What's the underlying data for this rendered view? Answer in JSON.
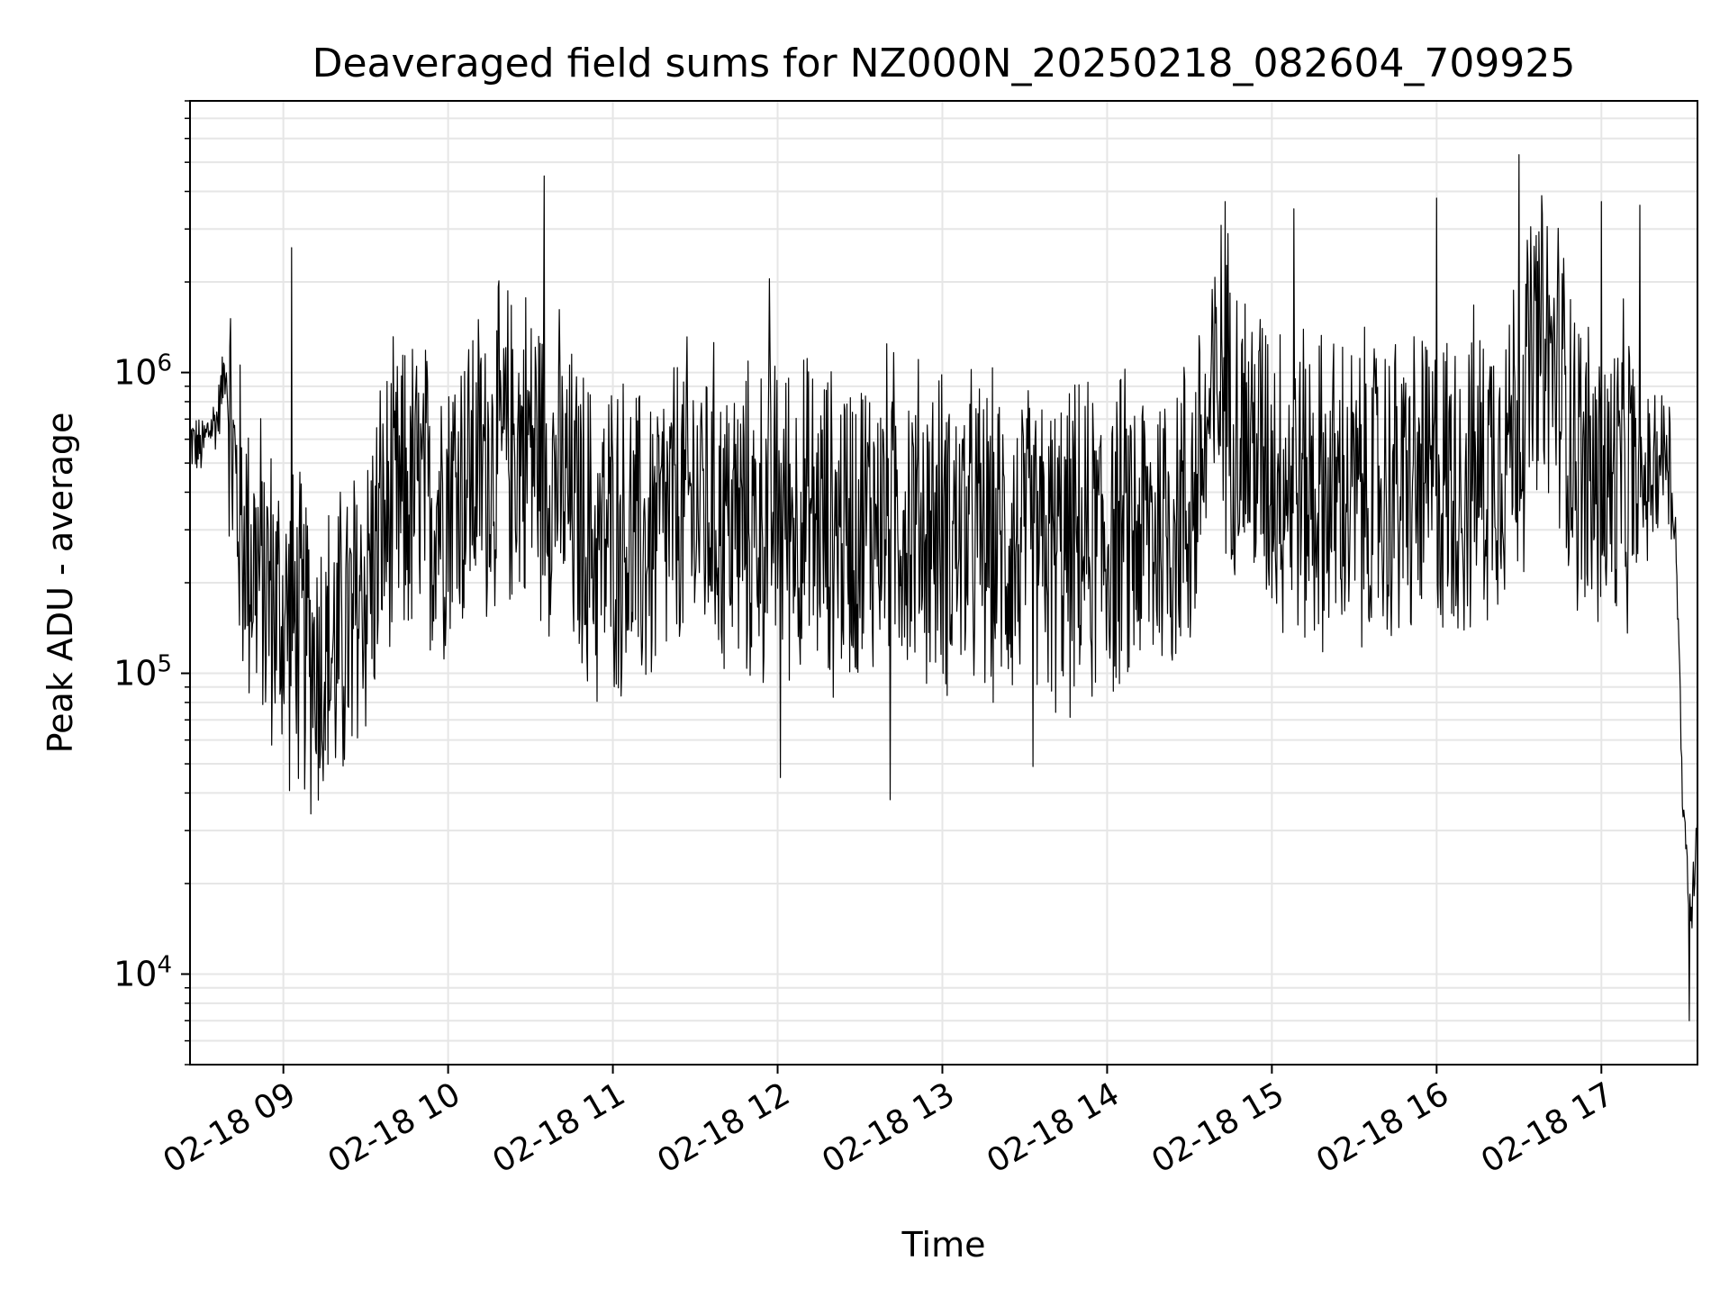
{
  "chart_data": {
    "type": "line",
    "title": "Deaveraged field sums for NZ000N_20250218_082604_709925",
    "xlabel": "Time",
    "ylabel": "Peak ADU - average",
    "yscale": "log",
    "ylim": [
      5000,
      8000000
    ],
    "xlim": [
      "02-18 08:26",
      "02-18 17:35"
    ],
    "grid": true,
    "legend": "none",
    "line_color": "#000000",
    "y_ticks": [
      {
        "value": 10000,
        "base": "10",
        "exp": "4"
      },
      {
        "value": 100000,
        "base": "10",
        "exp": "5"
      },
      {
        "value": 1000000,
        "base": "10",
        "exp": "6"
      }
    ],
    "x_ticks": [
      {
        "time": "02-18 09:00",
        "label": "02-18 09"
      },
      {
        "time": "02-18 10:00",
        "label": "02-18 10"
      },
      {
        "time": "02-18 11:00",
        "label": "02-18 11"
      },
      {
        "time": "02-18 12:00",
        "label": "02-18 12"
      },
      {
        "time": "02-18 13:00",
        "label": "02-18 13"
      },
      {
        "time": "02-18 14:00",
        "label": "02-18 14"
      },
      {
        "time": "02-18 15:00",
        "label": "02-18 15"
      },
      {
        "time": "02-18 16:00",
        "label": "02-18 16"
      },
      {
        "time": "02-18 17:00",
        "label": "02-18 17"
      }
    ],
    "series": [
      {
        "x": [
          "02-18 08:26",
          "02-18 08:30",
          "02-18 08:33",
          "02-18 08:36",
          "02-18 08:39",
          "02-18 08:42",
          "02-18 08:45",
          "02-18 08:48",
          "02-18 08:50",
          "02-18 08:53",
          "02-18 08:56",
          "02-18 08:59",
          "02-18 09:02",
          "02-18 09:05",
          "02-18 09:10",
          "02-18 09:15",
          "02-18 09:20",
          "02-18 09:25",
          "02-18 09:30",
          "02-18 09:36",
          "02-18 09:42",
          "02-18 09:48",
          "02-18 09:54",
          "02-18 10:00",
          "02-18 10:10",
          "02-18 10:20",
          "02-18 10:30",
          "02-18 10:35",
          "02-18 10:40",
          "02-18 10:45",
          "02-18 10:50",
          "02-18 10:55",
          "02-18 11:00",
          "02-18 11:05",
          "02-18 11:10",
          "02-18 11:20",
          "02-18 11:30",
          "02-18 11:40",
          "02-18 11:50",
          "02-18 12:00",
          "02-18 12:10",
          "02-18 12:20",
          "02-18 12:30",
          "02-18 12:40",
          "02-18 12:50",
          "02-18 13:00",
          "02-18 13:15",
          "02-18 13:30",
          "02-18 13:45",
          "02-18 14:00",
          "02-18 14:15",
          "02-18 14:30",
          "02-18 14:42",
          "02-18 14:50",
          "02-18 15:00",
          "02-18 15:15",
          "02-18 15:30",
          "02-18 15:45",
          "02-18 16:00",
          "02-18 16:15",
          "02-18 16:30",
          "02-18 16:36",
          "02-18 16:45",
          "02-18 16:52",
          "02-18 17:00",
          "02-18 17:10",
          "02-18 17:15",
          "02-18 17:20",
          "02-18 17:24",
          "02-18 17:27",
          "02-18 17:30",
          "02-18 17:33",
          "02-18 17:35"
        ],
        "y": [
          600000,
          550000,
          650000,
          700000,
          1100000,
          450000,
          300000,
          250000,
          230000,
          200000,
          180000,
          150000,
          150000,
          140000,
          120000,
          110000,
          120000,
          150000,
          200000,
          300000,
          350000,
          400000,
          350000,
          420000,
          480000,
          550000,
          600000,
          500000,
          450000,
          350000,
          300000,
          250000,
          300000,
          280000,
          250000,
          320000,
          380000,
          330000,
          300000,
          350000,
          330000,
          300000,
          320000,
          350000,
          320000,
          300000,
          280000,
          260000,
          250000,
          280000,
          300000,
          350000,
          1000000,
          600000,
          500000,
          400000,
          380000,
          400000,
          420000,
          450000,
          700000,
          1200000,
          1000000,
          500000,
          400000,
          450000,
          400000,
          500000,
          600000,
          300000,
          30000,
          15000,
          40000
        ]
      }
    ],
    "peaks": [
      {
        "x": "02-18 09:03",
        "y": 2600000
      },
      {
        "x": "02-18 10:35",
        "y": 4500000
      },
      {
        "x": "02-18 11:57",
        "y": 2050000
      },
      {
        "x": "02-18 14:43",
        "y": 3700000
      },
      {
        "x": "02-18 15:08",
        "y": 3500000
      },
      {
        "x": "02-18 16:00",
        "y": 3800000
      },
      {
        "x": "02-18 16:30",
        "y": 5300000
      },
      {
        "x": "02-18 17:00",
        "y": 3700000
      },
      {
        "x": "02-18 17:14",
        "y": 3600000
      }
    ],
    "troughs": [
      {
        "x": "02-18 09:25",
        "y": 62000
      },
      {
        "x": "02-18 12:01",
        "y": 45000
      },
      {
        "x": "02-18 12:41",
        "y": 38000
      },
      {
        "x": "02-18 13:33",
        "y": 49000
      },
      {
        "x": "02-18 17:32",
        "y": 7000
      }
    ]
  }
}
